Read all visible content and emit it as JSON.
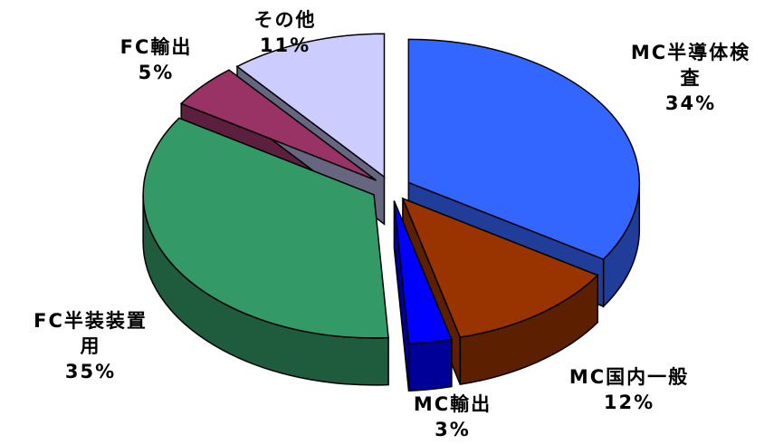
{
  "chart_data": {
    "type": "pie",
    "style": "3d-exploded",
    "title": "",
    "slices": [
      {
        "name": "MC半導体検査",
        "name_lines": [
          "MC半導体検",
          "査"
        ],
        "value": 34,
        "label": "34%",
        "color": "#3366ff",
        "side_color": "#1f3d99"
      },
      {
        "name": "MC国内一般",
        "name_lines": [
          "MC国内一般"
        ],
        "value": 12,
        "label": "12%",
        "color": "#993300",
        "side_color": "#5c1f00"
      },
      {
        "name": "MC輸出",
        "name_lines": [
          "MC輸出"
        ],
        "value": 3,
        "label": "3%",
        "color": "#0000ff",
        "side_color": "#000099"
      },
      {
        "name": "FC半装装置用",
        "name_lines": [
          "FC半装装置",
          "用"
        ],
        "value": 35,
        "label": "35%",
        "color": "#339966",
        "side_color": "#1f5c3d"
      },
      {
        "name": "FC輸出",
        "name_lines": [
          "FC輸出"
        ],
        "value": 5,
        "label": "5%",
        "color": "#993366",
        "side_color": "#5c1f3d"
      },
      {
        "name": "その他",
        "name_lines": [
          "その他"
        ],
        "value": 11,
        "label": "11%",
        "color": "#ccccff",
        "side_color": "#666680"
      }
    ]
  }
}
